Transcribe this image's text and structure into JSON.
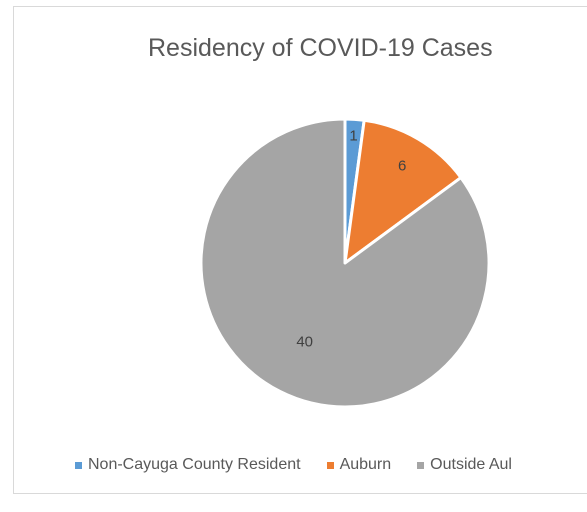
{
  "chart_data": {
    "type": "pie",
    "title": "Residency of COVID-19 Cases",
    "slices": [
      {
        "name": "Non-Cayuga County Resident",
        "value": 1,
        "color": "#5b9bd5"
      },
      {
        "name": "Auburn",
        "value": 6,
        "color": "#ed7d31"
      },
      {
        "name": "Outside Auburn",
        "value": 40,
        "color": "#a5a5a5"
      }
    ],
    "data_labels": [
      "1",
      "6",
      "40"
    ],
    "legend_position": "bottom",
    "legend_visible_text": [
      "Non-Cayuga County Resident",
      "Auburn",
      "Outside Aul"
    ]
  }
}
